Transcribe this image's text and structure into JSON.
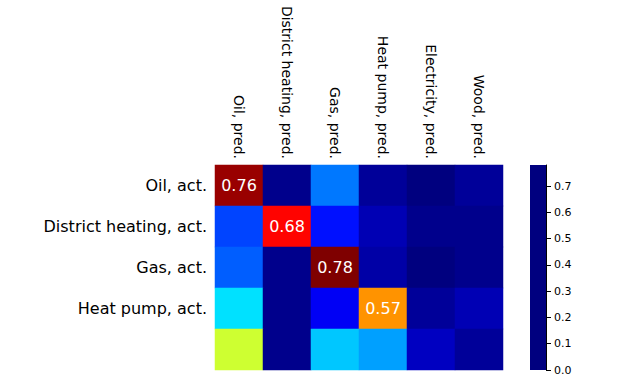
{
  "chart_data": {
    "type": "heatmap",
    "x": [
      "Oil, pred.",
      "District heating, pred.",
      "Gas, pred.",
      "Heat pump, pred.",
      "Electricity, pred.",
      "Wood, pred."
    ],
    "y": [
      "Oil, act.",
      "District heating, act.",
      "Gas, act.",
      "Heat pump, act.",
      null
    ],
    "values": [
      [
        0.76,
        0.01,
        0.19,
        0.02,
        0.0,
        0.02
      ],
      [
        0.15,
        0.68,
        0.11,
        0.04,
        0.01,
        0.01
      ],
      [
        0.17,
        0.01,
        0.78,
        0.03,
        0.0,
        0.01
      ],
      [
        0.27,
        0.01,
        0.09,
        0.57,
        0.02,
        0.04
      ],
      [
        0.45,
        0.01,
        0.25,
        0.22,
        0.05,
        0.02
      ]
    ],
    "value_labels": [
      [
        "0.76",
        null,
        null,
        null,
        null,
        null
      ],
      [
        null,
        "0.68",
        null,
        null,
        null,
        null
      ],
      [
        null,
        null,
        "0.78",
        null,
        null,
        null
      ],
      [
        null,
        null,
        null,
        "0.57",
        null,
        null
      ],
      [
        null,
        null,
        null,
        null,
        null,
        null
      ]
    ],
    "color_range": [
      0,
      0.78
    ],
    "color_ticks": [
      {
        "value": 0,
        "label": "0.0"
      },
      0.1,
      0.2,
      0.3,
      0.4,
      0.5,
      0.6,
      0.7
    ]
  }
}
